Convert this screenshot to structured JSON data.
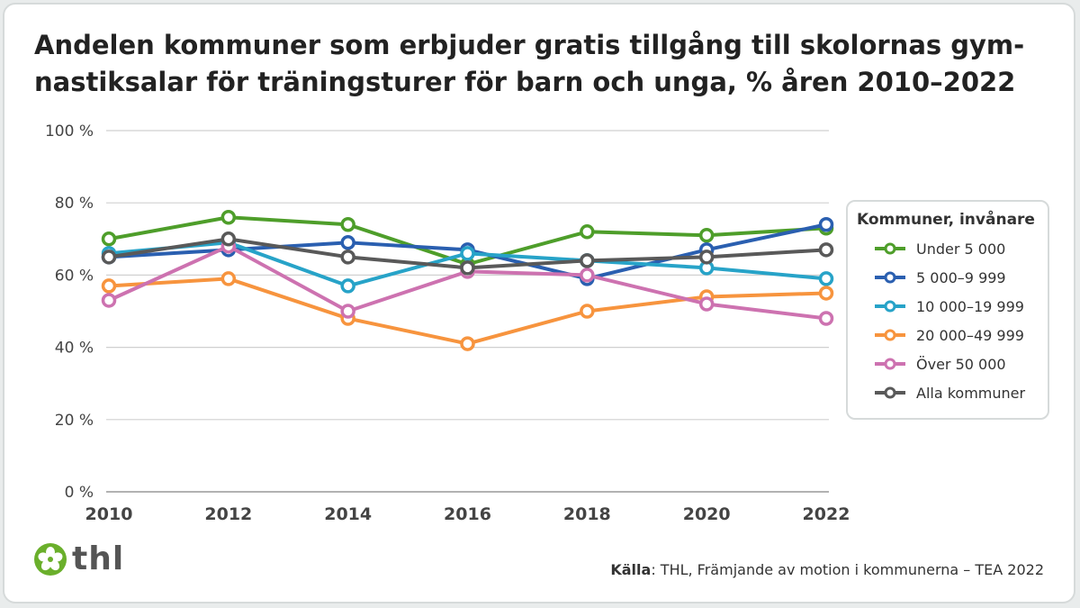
{
  "title": "Andelen kommuner som erbjuder gratis tillgång till skolornas gym-nastiksalar för träningsturer för barn och unga, % åren 2010–2022",
  "source": {
    "label": "Källa",
    "text": ": THL, Främjande av motion i kommunerna – TEA 2022"
  },
  "logo": {
    "text": "thl",
    "color": "#6aaf2b"
  },
  "chart_data": {
    "type": "line",
    "title": "Andelen kommuner som erbjuder gratis tillgång till skolornas gym-nastiksalar för träningsturer för barn och unga, % åren 2010–2022",
    "x": [
      "2010",
      "2012",
      "2014",
      "2016",
      "2018",
      "2020",
      "2022"
    ],
    "ylim": [
      0,
      100
    ],
    "yticks": [
      "0 %",
      "20 %",
      "40 %",
      "60 %",
      "80 %",
      "100 %"
    ],
    "grid": true,
    "legend_title": "Kommuner, invånare",
    "legend_placement": "right",
    "series": [
      {
        "name": "Under 5 000",
        "color": "#4e9e2a",
        "values": [
          70,
          76,
          74,
          63,
          72,
          71,
          73
        ]
      },
      {
        "name": "5 000–9 999",
        "color": "#2a5fb0",
        "values": [
          65,
          67,
          69,
          67,
          59,
          67,
          74
        ]
      },
      {
        "name": "10 000–19 999",
        "color": "#27a3c8",
        "values": [
          66,
          69,
          57,
          66,
          64,
          62,
          59
        ]
      },
      {
        "name": "20 000–49 999",
        "color": "#f7943e",
        "values": [
          57,
          59,
          48,
          41,
          50,
          54,
          55
        ]
      },
      {
        "name": "Över 50 000",
        "color": "#cd72b0",
        "values": [
          53,
          68,
          50,
          61,
          60,
          52,
          48
        ]
      },
      {
        "name": "Alla kommuner",
        "color": "#595959",
        "values": [
          65,
          70,
          65,
          62,
          64,
          65,
          67
        ]
      }
    ]
  }
}
